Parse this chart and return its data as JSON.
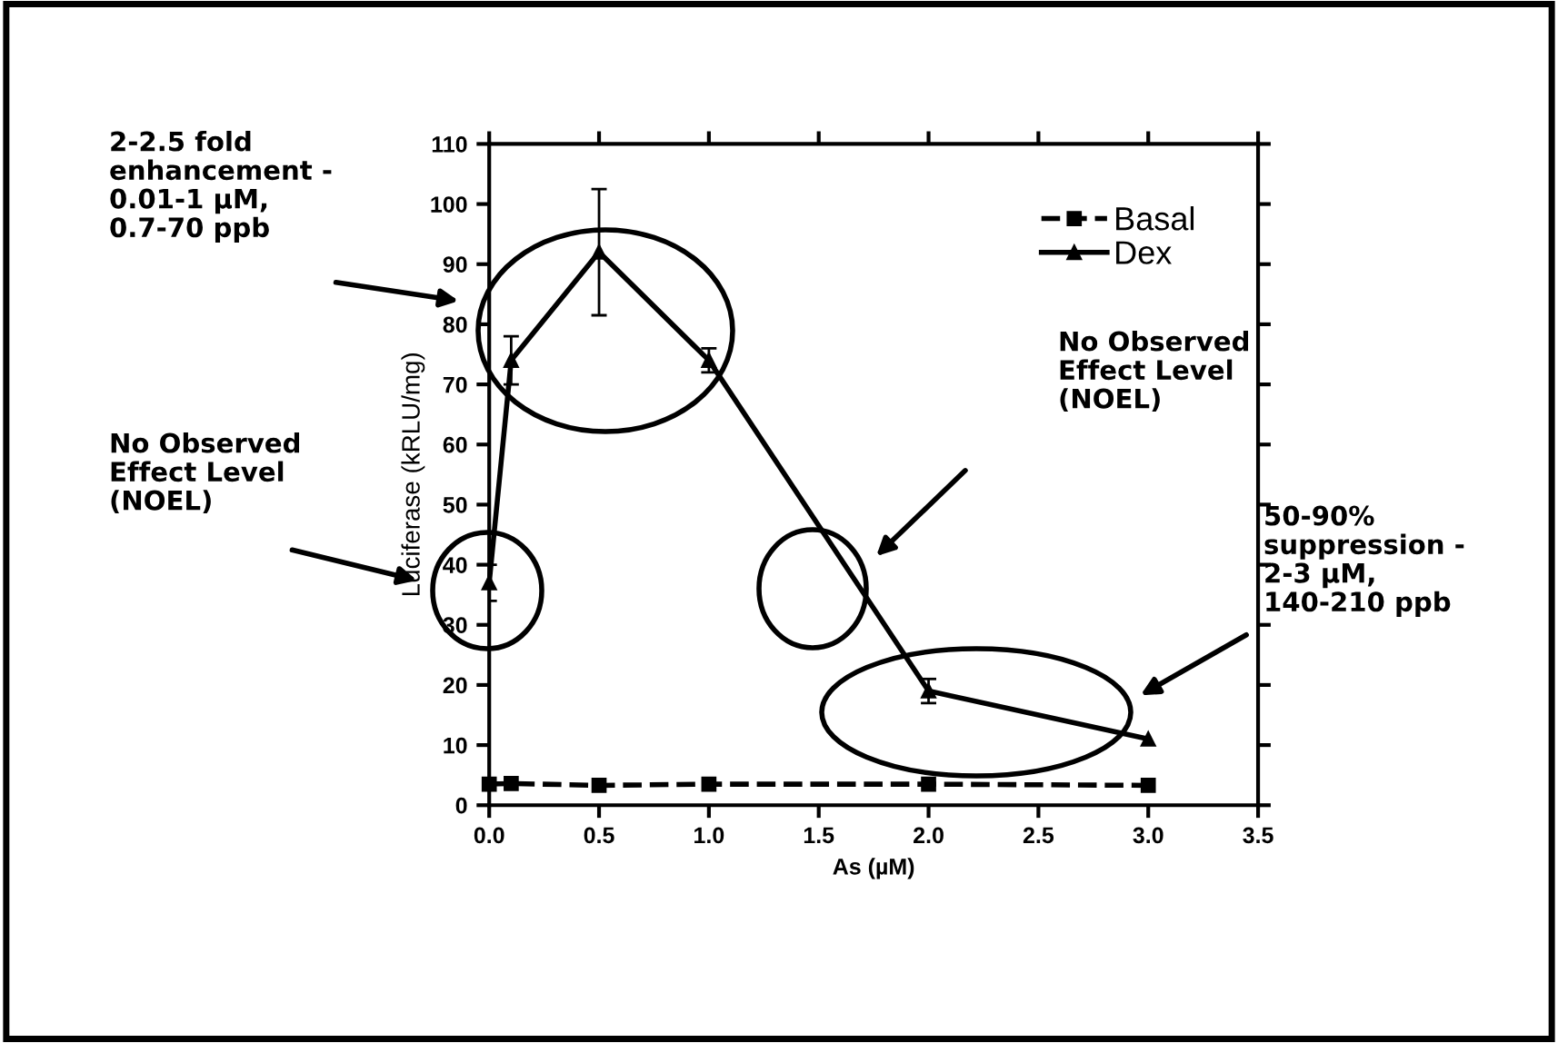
{
  "chart_data": {
    "type": "line",
    "xlabel": "As (µM)",
    "ylabel": "Luciferase (kRLU/mg)",
    "xlim": [
      0,
      3.5
    ],
    "xticks": [
      {
        "value": 0,
        "label": "0.0"
      },
      {
        "value": 0.5,
        "label": "0.5"
      },
      {
        "value": 1,
        "label": "1.0"
      },
      {
        "value": 1.5,
        "label": "1.5"
      },
      {
        "value": 2,
        "label": "2.0"
      },
      {
        "value": 2.5,
        "label": "2.5"
      },
      {
        "value": 3,
        "label": "3.0"
      },
      {
        "value": 3.5,
        "label": "3.5"
      }
    ],
    "ylim": [
      0,
      110
    ],
    "yticks": [
      0,
      10,
      20,
      30,
      40,
      50,
      60,
      70,
      80,
      90,
      100,
      110
    ],
    "grid": false,
    "legend": "top right",
    "series": [
      {
        "name": "Basal",
        "color": "#000000",
        "x": [
          0,
          0.1,
          0.5,
          1,
          2,
          3
        ],
        "values": [
          3.5,
          3.6,
          3.3,
          3.5,
          3.5,
          3.3
        ],
        "marker": "square",
        "line_style": "dashed"
      },
      {
        "name": "Dex",
        "color": "#000000",
        "x": [
          0,
          0.1,
          0.5,
          1,
          2,
          3
        ],
        "values": [
          37,
          74,
          92,
          74,
          19,
          11
        ],
        "errors": [
          3,
          4,
          10.5,
          2,
          2,
          null
        ],
        "marker": "triangle",
        "line_style": "solid"
      }
    ],
    "annotations": [
      "2-2.5 fold\nenhancement -\n0.01-1 µM,\n0.7-70 ppb",
      "No Observed\nEffect Level\n(NOEL)",
      "No Observed\nEffect Level\n(NOEL)",
      "50-90%\nsuppression -\n2-3 µM,\n140-210 ppb"
    ]
  }
}
